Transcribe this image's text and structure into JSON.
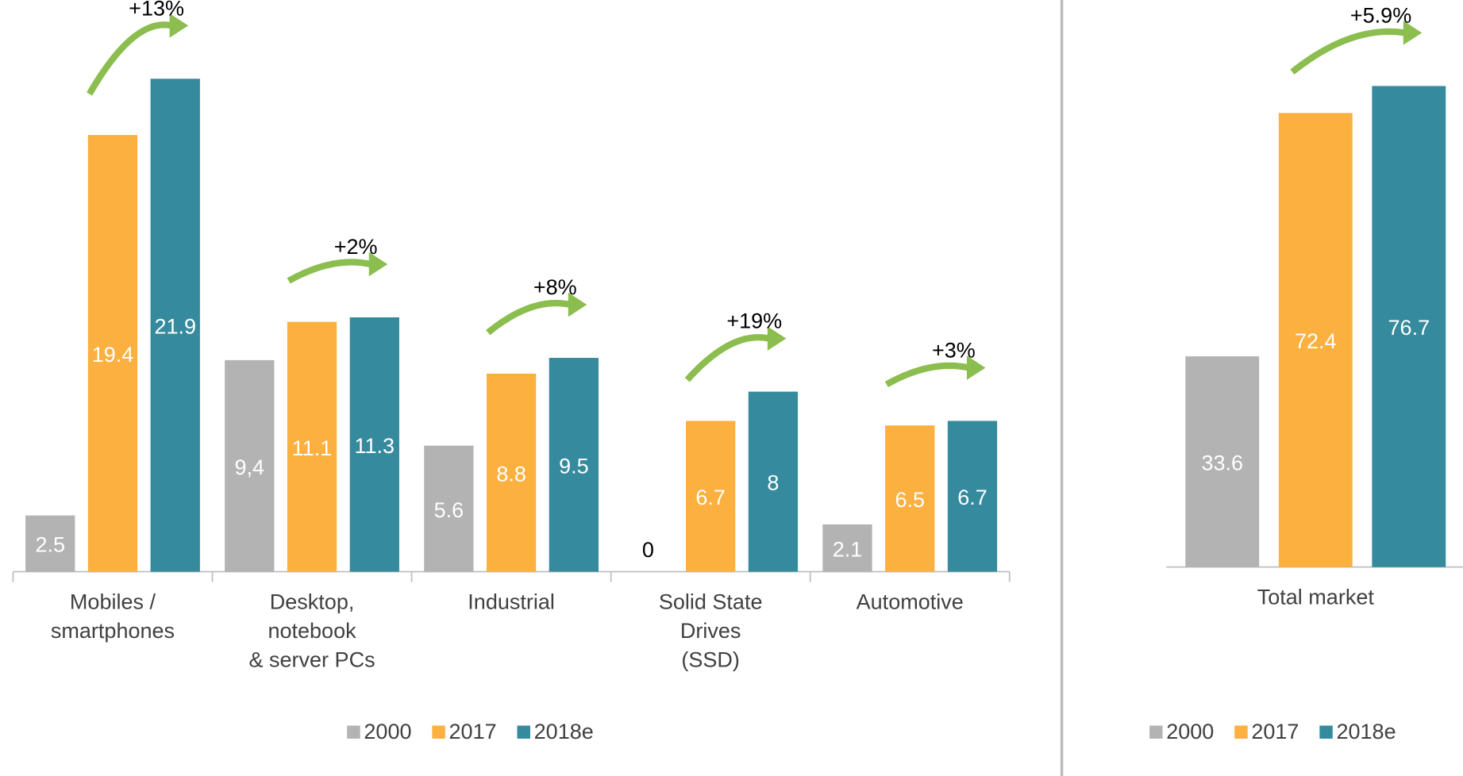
{
  "chart_data": [
    {
      "type": "bar",
      "categories": [
        "Mobiles /\nsmartphones",
        "Desktop,\nnotebook\n& server PCs",
        "Industrial",
        "Solid State\nDrives\n(SSD)",
        "Automotive"
      ],
      "series": [
        {
          "name": "2000",
          "color": "#b3b3b3",
          "values": [
            2.5,
            9.4,
            5.6,
            0,
            2.1
          ],
          "value_labels": [
            "2.5",
            "9,4",
            "5.6",
            "0",
            "2.1"
          ]
        },
        {
          "name": "2017",
          "color": "#fbb040",
          "values": [
            19.4,
            11.1,
            8.8,
            6.7,
            6.5
          ]
        },
        {
          "name": "2018e",
          "color": "#358a9e",
          "values": [
            21.9,
            11.3,
            9.5,
            8,
            6.7
          ]
        }
      ],
      "annotations": [
        "+13%",
        "+2%",
        "+8%",
        "+19%",
        "+3%"
      ],
      "ylim": [
        0,
        22
      ]
    },
    {
      "type": "bar",
      "categories": [
        "Total market"
      ],
      "series": [
        {
          "name": "2000",
          "color": "#b3b3b3",
          "values": [
            33.6
          ]
        },
        {
          "name": "2017",
          "color": "#fbb040",
          "values": [
            72.4
          ]
        },
        {
          "name": "2018e",
          "color": "#358a9e",
          "values": [
            76.7
          ]
        }
      ],
      "annotations": [
        "+5.9%"
      ],
      "ylim": [
        0,
        80
      ]
    }
  ]
}
